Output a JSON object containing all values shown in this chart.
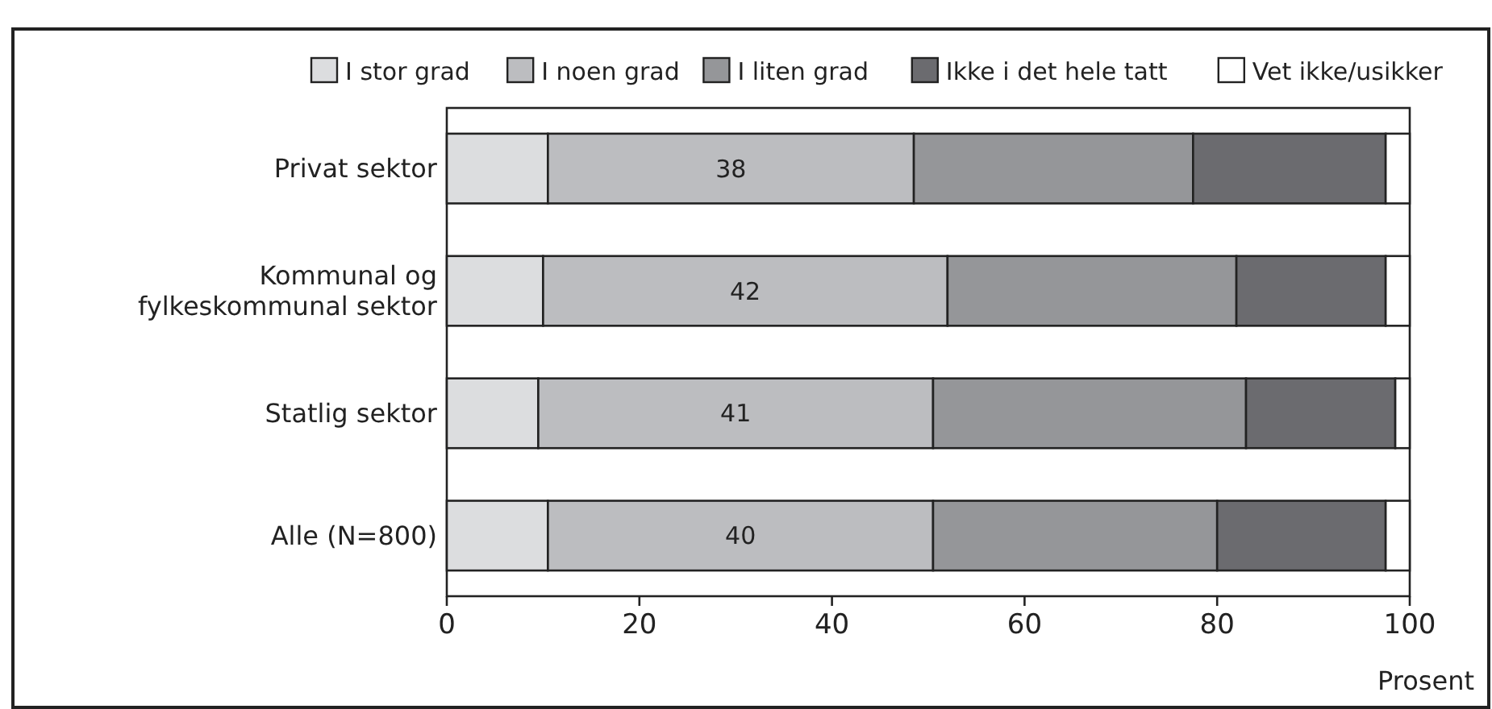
{
  "chart_data": {
    "type": "bar",
    "orientation": "horizontal",
    "stacked": true,
    "xlabel": "Prosent",
    "categories": [
      "Privat sektor",
      "Kommunal og\nfylkeskommunal sektor",
      "Statlig sektor",
      "Alle (N=800)"
    ],
    "series": [
      {
        "name": "I stor grad",
        "color": "#dcdddf",
        "values": [
          10.5,
          10,
          9.5,
          10.5
        ]
      },
      {
        "name": "I noen grad",
        "color": "#bcbdc0",
        "values": [
          38,
          42,
          41,
          40
        ],
        "value_labels": [
          "38",
          "42",
          "41",
          "40"
        ]
      },
      {
        "name": "I liten grad",
        "color": "#959699",
        "values": [
          29,
          30,
          32.5,
          29.5
        ]
      },
      {
        "name": "Ikke i det hele tatt",
        "color": "#6b6b6f",
        "values": [
          20,
          15.5,
          15.5,
          17.5
        ]
      },
      {
        "name": "Vet ikke/usikker",
        "color": "#ffffff",
        "values": [
          2.5,
          2.5,
          1.5,
          2.5
        ]
      }
    ],
    "xlim": [
      0,
      100
    ],
    "xticks": [
      0,
      20,
      40,
      60,
      80,
      100
    ],
    "grid": false,
    "legend": "top"
  }
}
